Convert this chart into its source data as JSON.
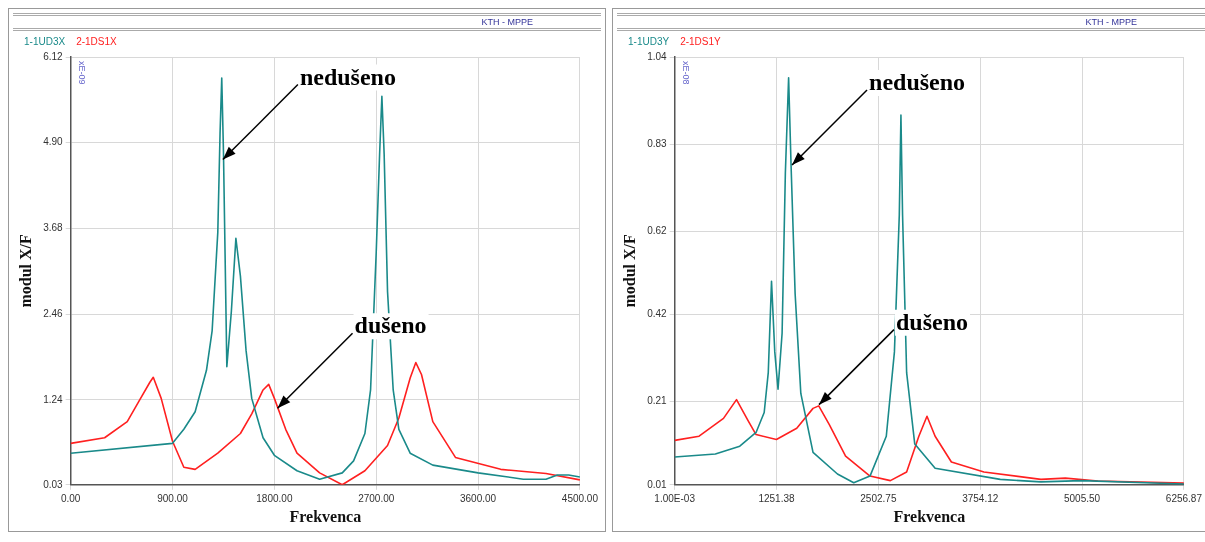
{
  "chart_data": [
    {
      "type": "line",
      "subtitle": "KTH - MPPE",
      "xlabel": "Frekvenca",
      "ylabel": "modul X/F",
      "legend": "top",
      "grid": true,
      "marker": "none",
      "line_style": "solid",
      "xlim": [
        0,
        4500
      ],
      "xticks": [
        {
          "value": 0,
          "label": "0.00"
        },
        {
          "value": 900,
          "label": "900.00"
        },
        {
          "value": 1800,
          "label": "1800.00"
        },
        {
          "value": 2700,
          "label": "2700.00"
        },
        {
          "value": 3600,
          "label": "3600.00"
        },
        {
          "value": 4500,
          "label": "4500.00"
        }
      ],
      "ylim": [
        0.03,
        6.12
      ],
      "yticks": [
        0.03,
        1.24,
        2.46,
        3.68,
        {
          "value": 4.9,
          "label": "4.90"
        },
        6.12
      ],
      "annotations": [
        "xE-09",
        {
          "text": "nedušeno",
          "x": 1345,
          "y": 4.66
        },
        {
          "text": "dušeno",
          "x": 1828,
          "y": 1.12
        }
      ],
      "series": [
        {
          "name": "1-1UD3X",
          "color": "#1a8a8a",
          "x": [
            0,
            900,
            1000,
            1100,
            1200,
            1250,
            1300,
            1320,
            1335,
            1350,
            1380,
            1420,
            1460,
            1500,
            1550,
            1600,
            1700,
            1800,
            2000,
            2200,
            2400,
            2500,
            2600,
            2650,
            2700,
            2730,
            2750,
            2770,
            2800,
            2850,
            2900,
            3000,
            3200,
            3600,
            4000,
            4200,
            4300,
            4400,
            4500
          ],
          "values": [
            0.48,
            0.62,
            0.82,
            1.07,
            1.66,
            2.22,
            3.62,
            5.03,
            5.82,
            4.79,
            1.71,
            2.5,
            3.54,
            3.0,
            1.94,
            1.26,
            0.7,
            0.45,
            0.23,
            0.11,
            0.2,
            0.37,
            0.76,
            1.38,
            3.34,
            4.74,
            5.56,
            4.74,
            2.78,
            1.38,
            0.82,
            0.48,
            0.31,
            0.2,
            0.11,
            0.11,
            0.17,
            0.17,
            0.14
          ]
        },
        {
          "name": "2-1DS1X",
          "color": "#ff2020",
          "x": [
            0,
            300,
            500,
            600,
            700,
            730,
            800,
            900,
            1000,
            1100,
            1300,
            1500,
            1600,
            1700,
            1750,
            1800,
            1900,
            2000,
            2200,
            2400,
            2600,
            2800,
            2900,
            3000,
            3050,
            3100,
            3200,
            3400,
            3800,
            4200,
            4500
          ],
          "values": [
            0.62,
            0.7,
            0.93,
            1.21,
            1.49,
            1.56,
            1.26,
            0.65,
            0.28,
            0.25,
            0.48,
            0.76,
            1.04,
            1.38,
            1.46,
            1.26,
            0.82,
            0.48,
            0.2,
            0.03,
            0.23,
            0.59,
            0.98,
            1.55,
            1.77,
            1.6,
            0.93,
            0.42,
            0.25,
            0.19,
            0.1
          ]
        }
      ]
    },
    {
      "type": "line",
      "subtitle": "KTH - MPPE",
      "xlabel": "Frekvenca",
      "ylabel": "modul X/F",
      "legend": "top",
      "grid": true,
      "marker": "none",
      "line_style": "solid",
      "xlim": [
        0.001,
        6256.87
      ],
      "xticks": [
        {
          "value": 0.001,
          "label": "1.00E-03"
        },
        1251.38,
        2502.75,
        3754.12,
        {
          "value": 5005.5,
          "label": "5005.50"
        },
        6256.87
      ],
      "ylim": [
        0.01,
        1.04
      ],
      "yticks": [
        0.01,
        0.21,
        0.42,
        0.62,
        0.83,
        1.04
      ],
      "annotations": [
        "xE-08",
        {
          "text": "nedušeno",
          "x": 1442,
          "y": 0.78
        },
        {
          "text": "dušeno",
          "x": 1773,
          "y": 0.203
        }
      ],
      "series": [
        {
          "name": "1-1UD3Y",
          "color": "#1a8a8a",
          "x": [
            0.001,
            500,
            800,
            1000,
            1100,
            1150,
            1190,
            1230,
            1270,
            1320,
            1360,
            1400,
            1430,
            1480,
            1550,
            1700,
            2000,
            2200,
            2400,
            2600,
            2700,
            2760,
            2780,
            2800,
            2850,
            2950,
            3200,
            4000,
            4500,
            5000,
            6256.87
          ],
          "values": [
            0.077,
            0.084,
            0.103,
            0.136,
            0.184,
            0.28,
            0.5,
            0.33,
            0.24,
            0.375,
            0.76,
            0.99,
            0.78,
            0.47,
            0.23,
            0.088,
            0.036,
            0.015,
            0.031,
            0.127,
            0.33,
            0.66,
            0.9,
            0.66,
            0.28,
            0.108,
            0.05,
            0.023,
            0.017,
            0.02,
            0.012
          ]
        },
        {
          "name": "2-1DS1Y",
          "color": "#ff2020",
          "x": [
            0.001,
            300,
            600,
            760,
            900,
            1000,
            1250,
            1500,
            1700,
            1770,
            1900,
            2100,
            2400,
            2650,
            2850,
            3000,
            3100,
            3200,
            3400,
            3800,
            4500,
            4800,
            5200,
            6256.87
          ],
          "values": [
            0.117,
            0.127,
            0.17,
            0.215,
            0.165,
            0.131,
            0.119,
            0.146,
            0.194,
            0.2,
            0.155,
            0.079,
            0.031,
            0.02,
            0.041,
            0.127,
            0.175,
            0.127,
            0.065,
            0.041,
            0.023,
            0.026,
            0.019,
            0.014
          ]
        }
      ]
    }
  ]
}
